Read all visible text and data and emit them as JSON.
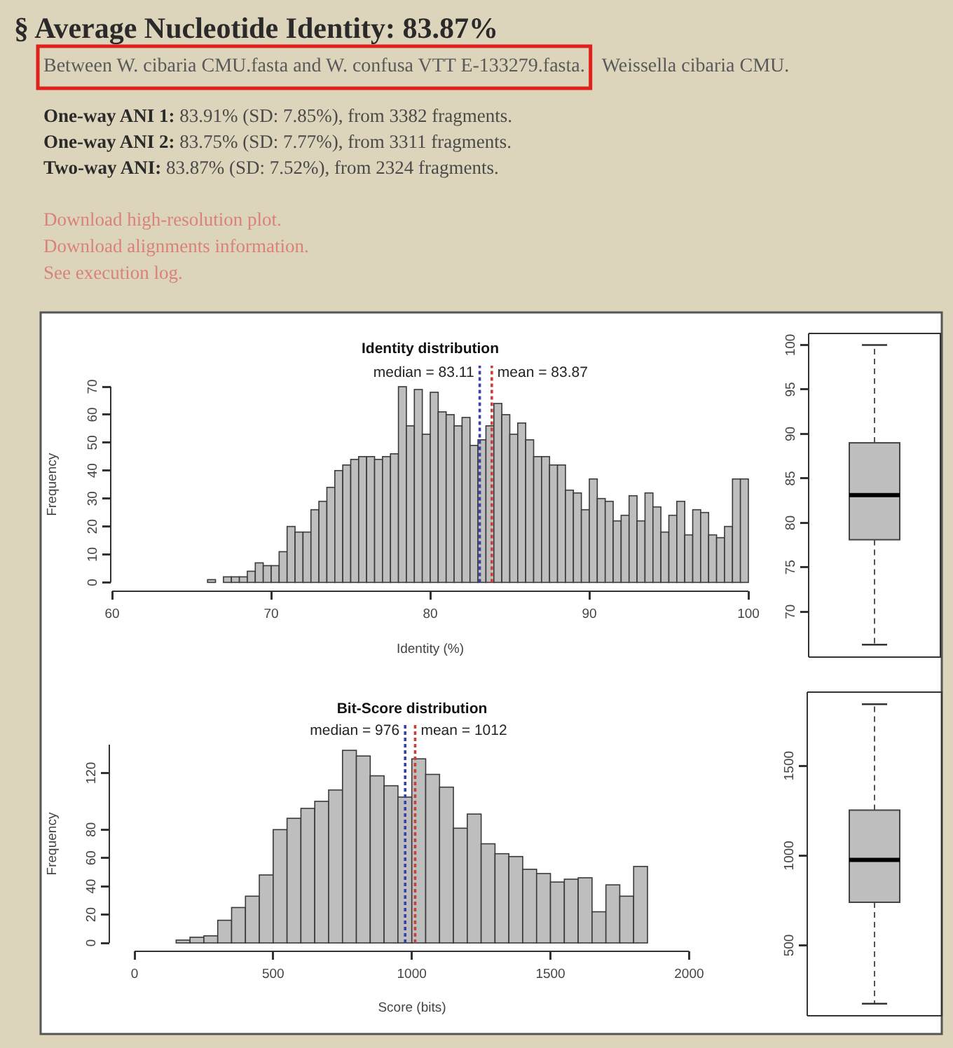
{
  "chart_data": [
    {
      "type": "other",
      "title": "§ Average Nucleotide Identity: 83.87%",
      "subtitle": "Between W. cibaria CMU.fasta and W. confusa VTT E-133279.fasta.",
      "annotations": [
        "Weissella cibaria CMU.",
        "One-way ANI 1: 83.91% (SD: 7.85%), from 3382 fragments.",
        "One-way ANI 2: 83.75% (SD: 7.77%), from 3311 fragments.",
        "Two-way ANI: 83.87% (SD: 7.52%), from 2324 fragments.",
        "Download high-resolution plot.",
        "Download alignments information.",
        "See execution log."
      ]
    },
    {
      "type": "histogram",
      "title": "Identity distribution",
      "xlabel": "Identity (%)",
      "ylabel": "Frequency",
      "color": "#bebebe",
      "bins": [
        66,
        66.5,
        67,
        67.5,
        68,
        68.5,
        69,
        69.5,
        70,
        70.5,
        71,
        71.5,
        72,
        72.5,
        73,
        73.5,
        74,
        74.5,
        75,
        75.5,
        76,
        76.5,
        77,
        77.5,
        78,
        78.5,
        79,
        79.5,
        80,
        80.5,
        81,
        81.5,
        82,
        82.5,
        83,
        83.5,
        84,
        84.5,
        85,
        85.5,
        86,
        86.5,
        87,
        87.5,
        88,
        88.5,
        89,
        89.5,
        90,
        90.5,
        91,
        91.5,
        92,
        92.5,
        93,
        93.5,
        94,
        94.5,
        95,
        95.5,
        96,
        96.5,
        97,
        97.5,
        98,
        98.5,
        99,
        99.5,
        100
      ],
      "values": [
        1,
        0,
        2,
        2,
        2,
        4,
        7,
        6,
        6,
        11,
        20,
        18,
        18,
        26,
        29,
        34,
        40,
        42,
        44,
        45,
        45,
        44,
        45,
        46,
        70,
        56,
        69,
        53,
        68,
        61,
        60,
        56,
        59,
        49,
        51,
        56,
        64,
        60,
        53,
        57,
        51,
        45,
        45,
        42,
        42,
        33,
        32,
        26,
        37,
        30,
        29,
        22,
        24,
        31,
        22,
        32,
        27,
        18,
        24,
        29,
        17,
        26,
        25,
        17,
        16,
        20,
        37,
        37
      ],
      "xlim": [
        60,
        100
      ],
      "xticks": [
        60,
        70,
        80,
        90,
        100
      ],
      "ylim": [
        0,
        70
      ],
      "yticks": [
        0,
        10,
        20,
        30,
        40,
        50,
        60,
        70
      ],
      "ref_lines": [
        {
          "axis": "x",
          "value": 83.87,
          "label": "mean = 83.87",
          "color": "#c8403c",
          "line_style": "dotted"
        },
        {
          "axis": "x",
          "value": 83.11,
          "label": "median = 83.11",
          "color": "#3b3fa8",
          "line_style": "dotted"
        }
      ]
    },
    {
      "type": "box",
      "categories": [
        null
      ],
      "color": "#bebebe",
      "boxes": [
        {
          "low": 66.3,
          "q1": 78.1,
          "median": 83.11,
          "q3": 89,
          "high": 100
        }
      ],
      "ylim": [
        64.9,
        101.3
      ],
      "yticks": [
        70,
        75,
        80,
        85,
        90,
        95,
        100
      ],
      "tick_labels": "y"
    },
    {
      "type": "histogram",
      "title": "Bit-Score distribution",
      "xlabel": "Score (bits)",
      "ylabel": "Frequency",
      "color": "#bebebe",
      "bins": [
        150,
        200,
        250,
        300,
        350,
        400,
        450,
        500,
        550,
        600,
        650,
        700,
        750,
        800,
        850,
        900,
        950,
        1000,
        1050,
        1100,
        1150,
        1200,
        1250,
        1300,
        1350,
        1400,
        1450,
        1500,
        1550,
        1600,
        1650,
        1700,
        1750,
        1800,
        1850
      ],
      "values": [
        2,
        4,
        5,
        16,
        25,
        33,
        48,
        80,
        88,
        95,
        100,
        108,
        136,
        132,
        118,
        111,
        103,
        130,
        119,
        110,
        81,
        91,
        70,
        63,
        61,
        52,
        49,
        43,
        45,
        46,
        22,
        41,
        33,
        54
      ],
      "xlim": [
        0,
        2000
      ],
      "xticks": [
        0,
        500,
        1000,
        1500,
        2000
      ],
      "ylim": [
        0,
        140
      ],
      "yticks": [
        0,
        20,
        40,
        60,
        80,
        120
      ],
      "ref_lines": [
        {
          "axis": "x",
          "value": 1012,
          "label": "mean = 1012",
          "color": "#c8403c",
          "line_style": "dotted"
        },
        {
          "axis": "x",
          "value": 976,
          "label": "median = 976",
          "color": "#3b3fa8",
          "line_style": "dotted"
        }
      ]
    },
    {
      "type": "box",
      "categories": [
        null
      ],
      "color": "#bebebe",
      "boxes": [
        {
          "low": 175,
          "q1": 740,
          "median": 976,
          "q3": 1253,
          "high": 1843
        }
      ],
      "ylim": [
        108,
        1910
      ],
      "yticks": [
        500,
        1000,
        1500
      ],
      "tick_labels": "y"
    }
  ]
}
